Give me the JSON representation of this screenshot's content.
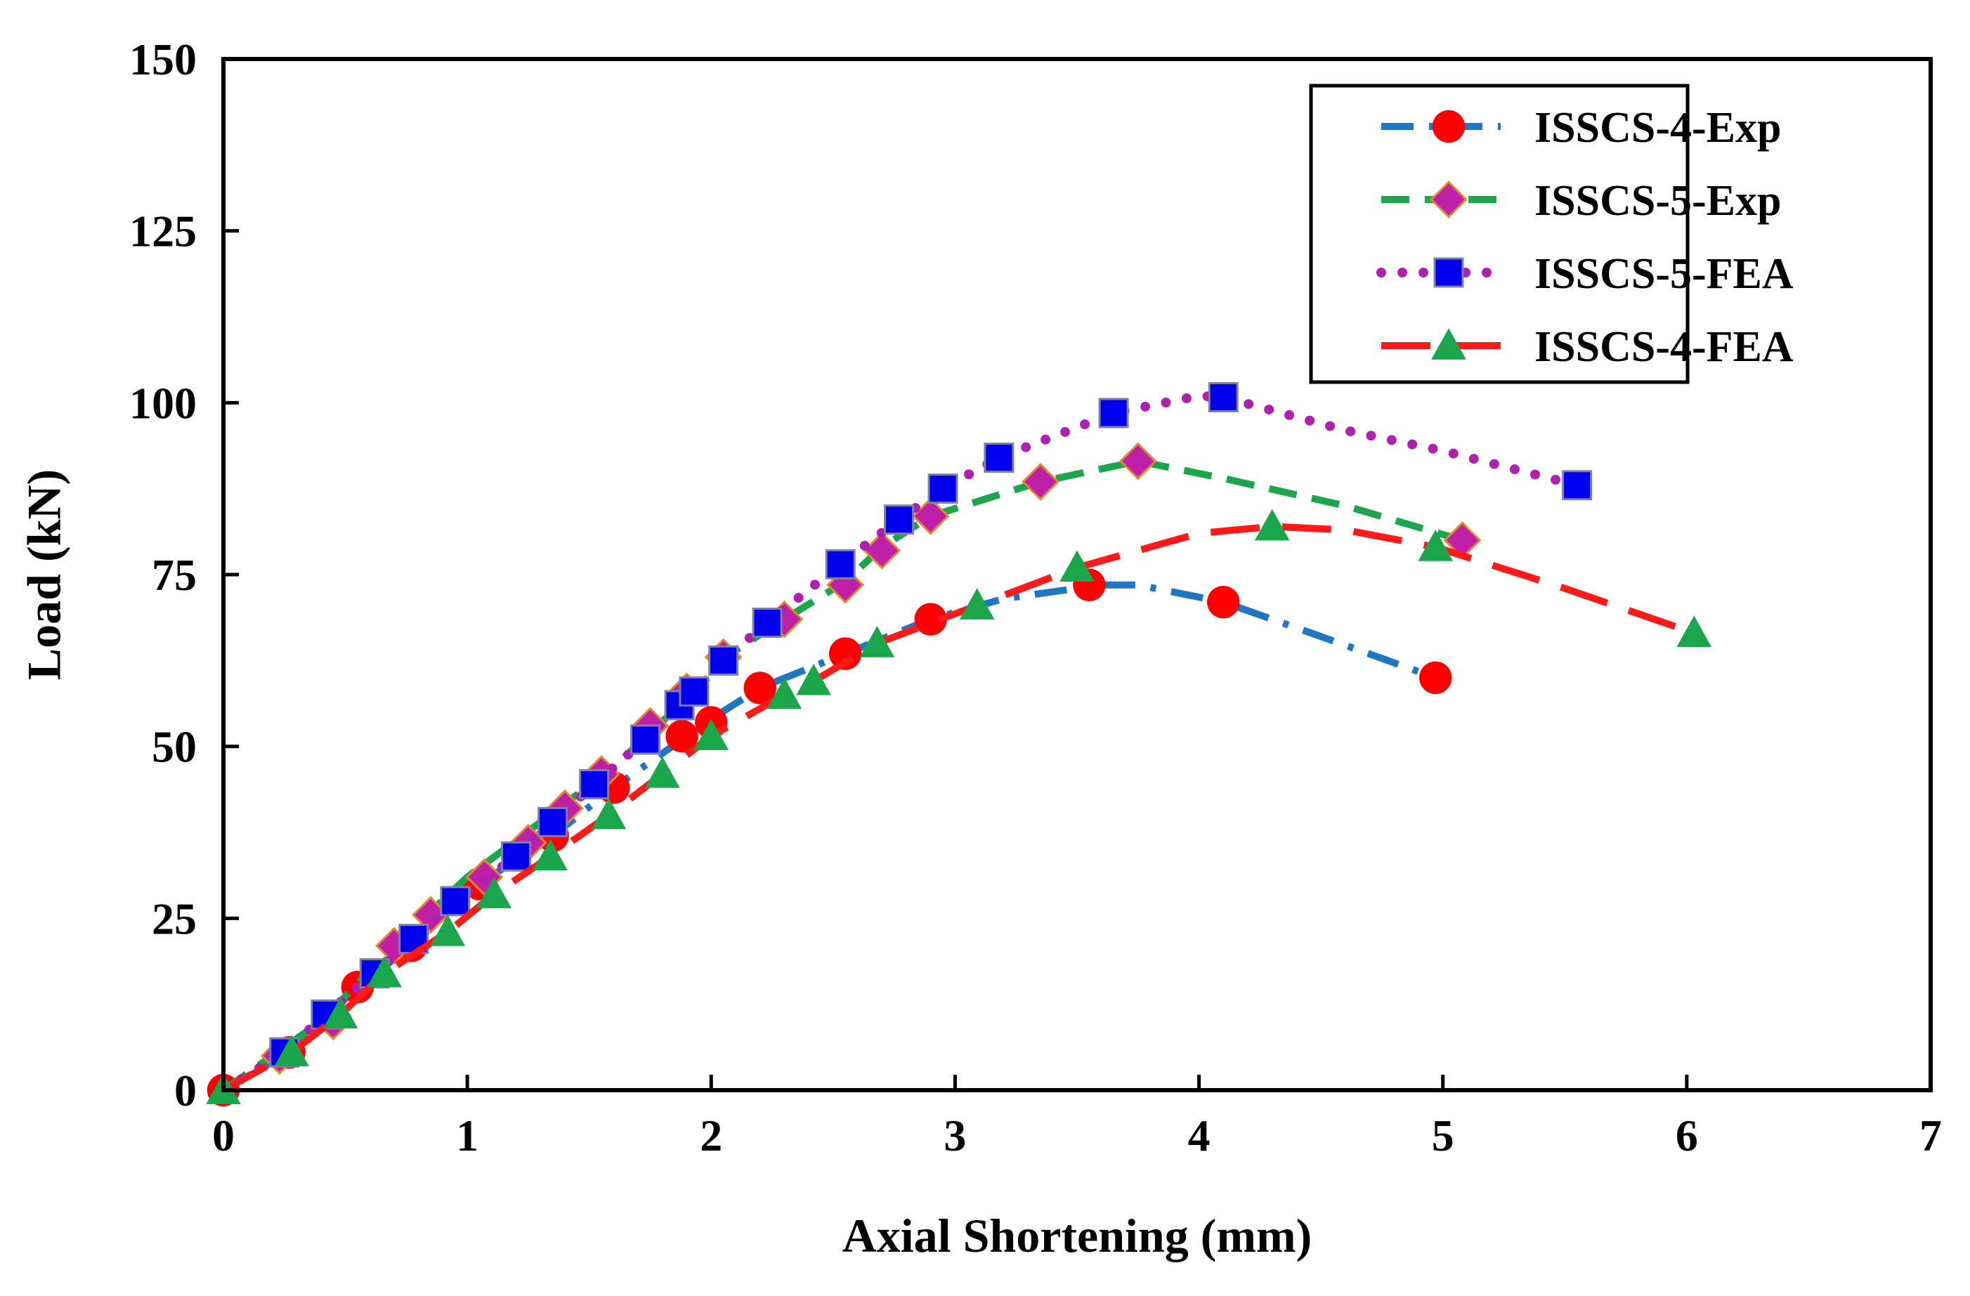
{
  "chart_data": {
    "type": "line",
    "title": "",
    "xlabel": "Axial Shortening (mm)",
    "ylabel": "Load (kN)",
    "xlim": [
      0,
      7
    ],
    "ylim": [
      0,
      150
    ],
    "xticks": [
      0,
      1,
      2,
      3,
      4,
      5,
      6,
      7
    ],
    "yticks": [
      0,
      25,
      50,
      75,
      100,
      125,
      150
    ],
    "grid": false,
    "legend_position": "top-right",
    "series": [
      {
        "name": "ISSCS-4-Exp",
        "line_color": "#1f77c4",
        "line_style": "dash-dot",
        "marker": "circle",
        "marker_color": "#ff0000",
        "line": [
          [
            0,
            0
          ],
          [
            0.27,
            5.5
          ],
          [
            0.55,
            15
          ],
          [
            0.77,
            21
          ],
          [
            1.05,
            30
          ],
          [
            1.35,
            37
          ],
          [
            1.6,
            44
          ],
          [
            1.88,
            51
          ],
          [
            2.0,
            54
          ],
          [
            2.2,
            58.5
          ],
          [
            2.55,
            63.5
          ],
          [
            2.9,
            68.5
          ],
          [
            3.2,
            71.5
          ],
          [
            3.6,
            73.5
          ],
          [
            3.75,
            73.5
          ],
          [
            4.1,
            71
          ],
          [
            4.5,
            66
          ],
          [
            4.97,
            60
          ]
        ],
        "markers": [
          [
            0,
            0
          ],
          [
            0.27,
            5.5
          ],
          [
            0.55,
            15
          ],
          [
            0.77,
            21
          ],
          [
            1.05,
            30
          ],
          [
            1.35,
            37
          ],
          [
            1.6,
            44
          ],
          [
            1.88,
            51.5
          ],
          [
            2.0,
            53.5
          ],
          [
            2.2,
            58.5
          ],
          [
            2.55,
            63.5
          ],
          [
            2.9,
            68.5
          ],
          [
            3.55,
            73.5
          ],
          [
            4.1,
            71
          ],
          [
            4.97,
            60
          ]
        ]
      },
      {
        "name": "ISSCS-5-Exp",
        "line_color": "#1aa64a",
        "line_style": "dashed",
        "marker": "diamond",
        "marker_color": "#c020a8",
        "line": [
          [
            0,
            0
          ],
          [
            0.4,
            10
          ],
          [
            0.7,
            21
          ],
          [
            1.0,
            31
          ],
          [
            1.3,
            39
          ],
          [
            1.6,
            47
          ],
          [
            1.9,
            57
          ],
          [
            2.1,
            64
          ],
          [
            2.3,
            68.5
          ],
          [
            2.55,
            74
          ],
          [
            2.7,
            79
          ],
          [
            2.9,
            83.5
          ],
          [
            3.35,
            88.5
          ],
          [
            3.75,
            91.5
          ],
          [
            4.1,
            89
          ],
          [
            4.6,
            85
          ],
          [
            5.08,
            80
          ]
        ],
        "markers": [
          [
            0.23,
            5
          ],
          [
            0.45,
            10
          ],
          [
            0.7,
            21
          ],
          [
            0.85,
            25.5
          ],
          [
            1.07,
            31
          ],
          [
            1.25,
            36
          ],
          [
            1.4,
            41
          ],
          [
            1.55,
            46
          ],
          [
            1.75,
            53
          ],
          [
            1.9,
            58
          ],
          [
            2.05,
            63
          ],
          [
            2.3,
            68.5
          ],
          [
            2.55,
            73.5
          ],
          [
            2.7,
            78.5
          ],
          [
            2.9,
            83.5
          ],
          [
            3.35,
            88.5
          ],
          [
            3.75,
            91.5
          ],
          [
            5.08,
            80
          ]
        ]
      },
      {
        "name": "ISSCS-5-FEA",
        "line_color": "#b020b0",
        "line_style": "dotted",
        "marker": "square",
        "marker_color": "#0000ee",
        "line": [
          [
            0,
            0
          ],
          [
            0.25,
            5.5
          ],
          [
            0.42,
            11
          ],
          [
            0.62,
            17
          ],
          [
            0.78,
            22
          ],
          [
            0.95,
            27.5
          ],
          [
            1.2,
            34
          ],
          [
            1.35,
            39
          ],
          [
            1.52,
            44.5
          ],
          [
            1.73,
            51
          ],
          [
            1.87,
            56
          ],
          [
            1.93,
            58
          ],
          [
            2.05,
            62.5
          ],
          [
            2.23,
            68
          ],
          [
            2.53,
            76.5
          ],
          [
            2.77,
            83
          ],
          [
            2.95,
            87.5
          ],
          [
            3.18,
            92
          ],
          [
            3.65,
            98.5
          ],
          [
            4.0,
            101
          ],
          [
            4.1,
            100.8
          ],
          [
            4.6,
            96
          ],
          [
            5.0,
            93
          ],
          [
            5.55,
            88
          ]
        ],
        "markers": [
          [
            0.25,
            5.5
          ],
          [
            0.42,
            11
          ],
          [
            0.62,
            17
          ],
          [
            0.78,
            22
          ],
          [
            0.95,
            27.5
          ],
          [
            1.2,
            34
          ],
          [
            1.35,
            39
          ],
          [
            1.52,
            44.5
          ],
          [
            1.73,
            51
          ],
          [
            1.87,
            56
          ],
          [
            1.93,
            58
          ],
          [
            2.05,
            62.5
          ],
          [
            2.23,
            68
          ],
          [
            2.53,
            76.5
          ],
          [
            2.77,
            83
          ],
          [
            2.95,
            87.5
          ],
          [
            3.18,
            92
          ],
          [
            3.65,
            98.5
          ],
          [
            4.1,
            100.8
          ],
          [
            5.55,
            88
          ]
        ]
      },
      {
        "name": "ISSCS-4-FEA",
        "line_color": "#ff1a1a",
        "line_style": "long-dash",
        "marker": "triangle",
        "marker_color": "#1aa64a",
        "line": [
          [
            0,
            0
          ],
          [
            0.28,
            5.5
          ],
          [
            0.48,
            11
          ],
          [
            0.66,
            17
          ],
          [
            0.92,
            23
          ],
          [
            1.11,
            28.5
          ],
          [
            1.34,
            34
          ],
          [
            1.58,
            40
          ],
          [
            1.8,
            46
          ],
          [
            2.0,
            51.5
          ],
          [
            2.3,
            57.5
          ],
          [
            2.42,
            59.5
          ],
          [
            2.68,
            65
          ],
          [
            3.09,
            70.5
          ],
          [
            3.5,
            76
          ],
          [
            4.0,
            81
          ],
          [
            4.3,
            82
          ],
          [
            4.6,
            81.5
          ],
          [
            4.97,
            79
          ],
          [
            5.5,
            73
          ],
          [
            6.03,
            66.5
          ]
        ],
        "markers": [
          [
            0,
            0
          ],
          [
            0.28,
            5.5
          ],
          [
            0.48,
            11
          ],
          [
            0.66,
            17
          ],
          [
            0.92,
            23
          ],
          [
            1.11,
            28.5
          ],
          [
            1.34,
            34
          ],
          [
            1.58,
            40
          ],
          [
            1.8,
            46
          ],
          [
            2.0,
            51.5
          ],
          [
            2.3,
            57.5
          ],
          [
            2.42,
            59.5
          ],
          [
            2.68,
            65
          ],
          [
            3.09,
            70.5
          ],
          [
            3.5,
            76
          ],
          [
            4.3,
            82
          ],
          [
            4.97,
            79
          ],
          [
            6.03,
            66.5
          ]
        ]
      }
    ]
  }
}
